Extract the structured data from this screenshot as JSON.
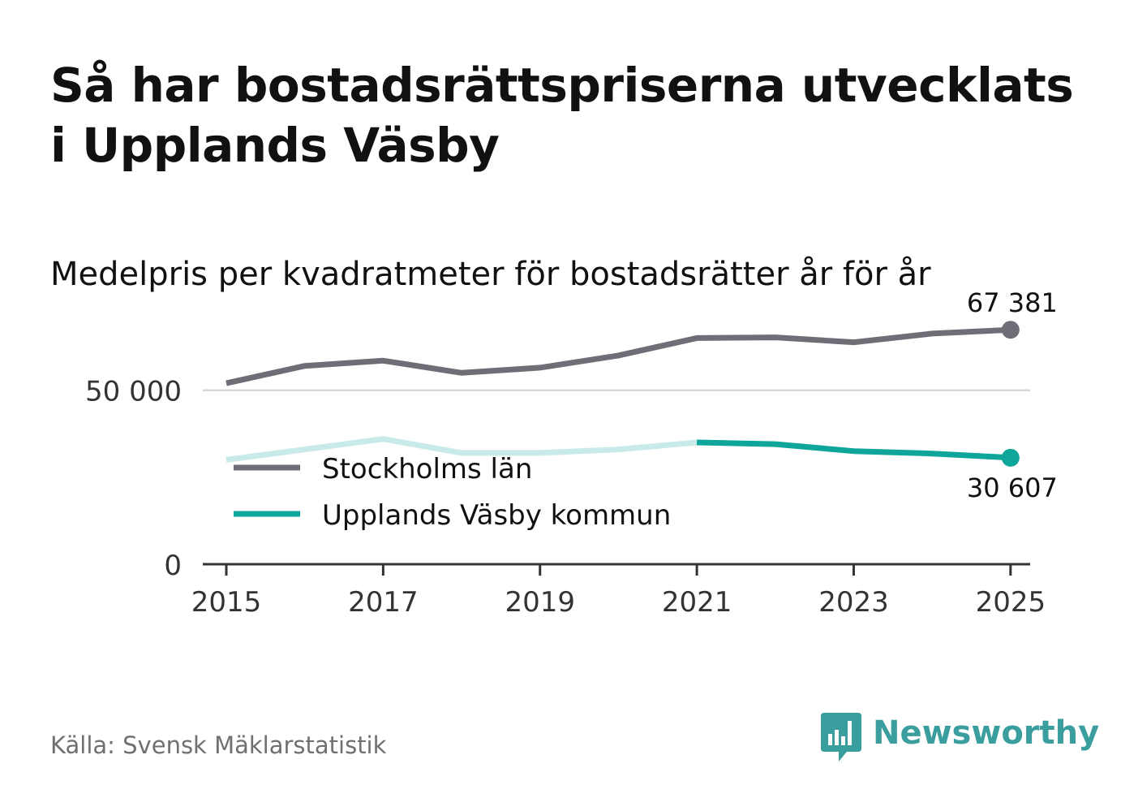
{
  "title": "Så har bostadsrättspriserna utvecklats i Upplands Väsby",
  "subtitle": "Medelpris per kvadratmeter för bostadsrätter år för år",
  "source": "Källa: Svensk Mäklarstatistik",
  "brand": "Newsworthy",
  "colors": {
    "stockholm": "#6f6e76",
    "vasby": "#0ea69b",
    "vasby_faded": "#c8eae8",
    "grid": "#d9d9d9",
    "axis": "#333333",
    "brand": "#3a9e9e"
  },
  "chart_data": {
    "type": "line",
    "title": "Medelpris per kvadratmeter för bostadsrätter år för år",
    "xlabel": "",
    "ylabel": "",
    "x": [
      2015,
      2016,
      2017,
      2018,
      2019,
      2020,
      2021,
      2022,
      2023,
      2024,
      2025
    ],
    "xticks": [
      "2015",
      "2017",
      "2019",
      "2021",
      "2023",
      "2025"
    ],
    "yticks": [
      {
        "value": 0,
        "label": "0"
      },
      {
        "value": 50000,
        "label": "50 000"
      }
    ],
    "ylim": [
      0,
      70000
    ],
    "xlim": [
      2014.7,
      2025.25
    ],
    "series": [
      {
        "name": "Stockholms län",
        "color": "#6f6e76",
        "values": [
          52000,
          57000,
          58500,
          55000,
          56500,
          60000,
          65000,
          65200,
          63800,
          66300,
          67381
        ],
        "end_label": "67 381"
      },
      {
        "name": "Upplands Väsby kommun",
        "color": "#0ea69b",
        "faded_color": "#c8eae8",
        "faded_until": 2021,
        "values": [
          30000,
          33000,
          36000,
          32000,
          32000,
          33000,
          35000,
          34500,
          32500,
          31800,
          30607
        ],
        "end_label": "30 607"
      }
    ],
    "legend": {
      "position": "middle-left",
      "items": [
        "Stockholms län",
        "Upplands Väsby kommun"
      ]
    },
    "grid": true
  }
}
